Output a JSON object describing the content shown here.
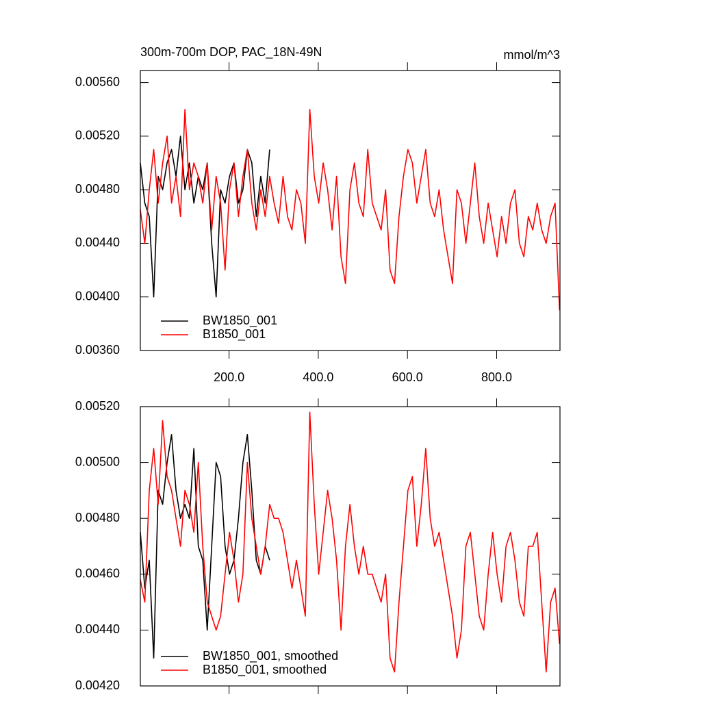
{
  "chart_data": [
    {
      "type": "line",
      "title": "300m-700m DOP, PAC_18N-49N",
      "units": "mmol/m^3",
      "xlim": [
        1,
        942
      ],
      "ylim": [
        0.0036,
        0.00569
      ],
      "xticks": [
        {
          "value": 200,
          "label": "200.0"
        },
        {
          "value": 400,
          "label": "400.0"
        },
        {
          "value": 600,
          "label": "600.0"
        },
        {
          "value": 800,
          "label": "800.0"
        }
      ],
      "yticks": [
        {
          "value": 0.0036,
          "label": "0.00360"
        },
        {
          "value": 0.004,
          "label": "0.00400"
        },
        {
          "value": 0.0044,
          "label": "0.00440"
        },
        {
          "value": 0.0048,
          "label": "0.00480"
        },
        {
          "value": 0.0052,
          "label": "0.00520"
        },
        {
          "value": 0.0056,
          "label": "0.00560"
        }
      ],
      "legend": "lower left",
      "series": [
        {
          "name": "BW1850_001",
          "color": "#000000",
          "x": [
            1,
            11,
            21,
            31,
            41,
            51,
            61,
            71,
            81,
            91,
            101,
            111,
            121,
            131,
            141,
            151,
            161,
            171,
            181,
            191,
            201,
            211,
            221,
            231,
            241,
            251,
            261,
            271,
            281,
            291
          ],
          "values": [
            0.005,
            0.0047,
            0.0046,
            0.004,
            0.0049,
            0.0048,
            0.005,
            0.0051,
            0.0049,
            0.0052,
            0.0048,
            0.005,
            0.0047,
            0.0049,
            0.0048,
            0.005,
            0.0044,
            0.004,
            0.0048,
            0.0047,
            0.0049,
            0.005,
            0.0047,
            0.0048,
            0.0051,
            0.005,
            0.0046,
            0.0049,
            0.0047,
            0.0051
          ]
        },
        {
          "name": "B1850_001",
          "color": "#ff0000",
          "x": [
            1,
            11,
            21,
            31,
            41,
            51,
            61,
            71,
            81,
            91,
            101,
            111,
            121,
            131,
            141,
            151,
            161,
            171,
            181,
            191,
            201,
            211,
            221,
            231,
            241,
            251,
            261,
            271,
            281,
            291,
            301,
            311,
            321,
            331,
            341,
            351,
            361,
            371,
            381,
            391,
            401,
            411,
            421,
            431,
            441,
            451,
            461,
            471,
            481,
            491,
            501,
            511,
            521,
            531,
            541,
            551,
            561,
            571,
            581,
            591,
            601,
            611,
            621,
            631,
            641,
            651,
            661,
            671,
            681,
            691,
            701,
            711,
            721,
            731,
            741,
            751,
            761,
            771,
            781,
            791,
            801,
            811,
            821,
            831,
            841,
            851,
            861,
            871,
            881,
            891,
            901,
            911,
            921,
            931,
            941
          ],
          "values": [
            0.00465,
            0.0044,
            0.0048,
            0.0051,
            0.0047,
            0.005,
            0.0052,
            0.0047,
            0.0049,
            0.0046,
            0.0054,
            0.0048,
            0.005,
            0.0049,
            0.0047,
            0.005,
            0.0045,
            0.0049,
            0.0047,
            0.0042,
            0.0048,
            0.005,
            0.0046,
            0.0049,
            0.0051,
            0.0047,
            0.0045,
            0.0048,
            0.0046,
            0.0049,
            0.0047,
            0.00455,
            0.0049,
            0.0046,
            0.0045,
            0.0048,
            0.0047,
            0.0044,
            0.0054,
            0.0049,
            0.0047,
            0.005,
            0.0048,
            0.0045,
            0.0049,
            0.0043,
            0.0041,
            0.0048,
            0.005,
            0.0047,
            0.0046,
            0.0051,
            0.0047,
            0.0046,
            0.0045,
            0.0048,
            0.0042,
            0.0041,
            0.0046,
            0.0049,
            0.0051,
            0.005,
            0.0047,
            0.0049,
            0.0051,
            0.0047,
            0.0046,
            0.0048,
            0.0045,
            0.0043,
            0.0041,
            0.0048,
            0.0047,
            0.0044,
            0.0047,
            0.005,
            0.0046,
            0.0044,
            0.0047,
            0.0045,
            0.0043,
            0.0046,
            0.0044,
            0.0047,
            0.0048,
            0.0044,
            0.0043,
            0.0046,
            0.0045,
            0.0047,
            0.0045,
            0.0044,
            0.0046,
            0.0047,
            0.0039
          ]
        }
      ]
    },
    {
      "type": "line",
      "xlim": [
        1,
        942
      ],
      "ylim": [
        0.0042,
        0.0052
      ],
      "xticks": [
        200,
        400,
        600,
        800
      ],
      "yticks": [
        {
          "value": 0.0042,
          "label": "0.00420"
        },
        {
          "value": 0.0044,
          "label": "0.00440"
        },
        {
          "value": 0.0046,
          "label": "0.00460"
        },
        {
          "value": 0.0048,
          "label": "0.00480"
        },
        {
          "value": 0.005,
          "label": "0.00500"
        },
        {
          "value": 0.0052,
          "label": "0.00520"
        }
      ],
      "legend": "lower left",
      "series": [
        {
          "name": "BW1850_001, smoothed",
          "color": "#000000",
          "x": [
            1,
            11,
            21,
            31,
            41,
            51,
            61,
            71,
            81,
            91,
            101,
            111,
            121,
            131,
            141,
            151,
            161,
            171,
            181,
            191,
            201,
            211,
            221,
            231,
            241,
            251,
            261,
            271,
            281,
            291
          ],
          "values": [
            0.00475,
            0.00455,
            0.00465,
            0.0043,
            0.0049,
            0.00485,
            0.005,
            0.0051,
            0.0049,
            0.0048,
            0.00485,
            0.0048,
            0.00505,
            0.0047,
            0.00465,
            0.0044,
            0.0047,
            0.005,
            0.00495,
            0.0047,
            0.0046,
            0.00465,
            0.0048,
            0.005,
            0.0051,
            0.0049,
            0.00465,
            0.0046,
            0.0047,
            0.00465
          ]
        },
        {
          "name": "B1850_001, smoothed",
          "color": "#ff0000",
          "x": [
            1,
            11,
            21,
            31,
            41,
            51,
            61,
            71,
            81,
            91,
            101,
            111,
            121,
            131,
            141,
            151,
            161,
            171,
            181,
            191,
            201,
            211,
            221,
            231,
            241,
            251,
            261,
            271,
            281,
            291,
            301,
            311,
            321,
            331,
            341,
            351,
            361,
            371,
            381,
            391,
            401,
            411,
            421,
            431,
            441,
            451,
            461,
            471,
            481,
            491,
            501,
            511,
            521,
            531,
            541,
            551,
            561,
            571,
            581,
            591,
            601,
            611,
            621,
            631,
            641,
            651,
            661,
            671,
            681,
            691,
            701,
            711,
            721,
            731,
            741,
            751,
            761,
            771,
            781,
            791,
            801,
            811,
            821,
            831,
            841,
            851,
            861,
            871,
            881,
            891,
            901,
            911,
            921,
            931,
            941
          ],
          "values": [
            0.00458,
            0.0045,
            0.0049,
            0.00505,
            0.00485,
            0.00515,
            0.00495,
            0.0049,
            0.0048,
            0.0047,
            0.0049,
            0.00485,
            0.00475,
            0.005,
            0.0047,
            0.0045,
            0.00445,
            0.0044,
            0.00445,
            0.0046,
            0.00475,
            0.00465,
            0.0045,
            0.0046,
            0.005,
            0.0048,
            0.0047,
            0.0046,
            0.0047,
            0.00485,
            0.0048,
            0.0048,
            0.00475,
            0.00465,
            0.00455,
            0.00465,
            0.00455,
            0.00445,
            0.00518,
            0.00485,
            0.0046,
            0.00475,
            0.0049,
            0.0048,
            0.00465,
            0.0044,
            0.0047,
            0.00485,
            0.0047,
            0.0046,
            0.0047,
            0.0046,
            0.0046,
            0.00455,
            0.0045,
            0.0046,
            0.0043,
            0.00425,
            0.0045,
            0.0047,
            0.0049,
            0.00495,
            0.0047,
            0.00485,
            0.00505,
            0.0048,
            0.0047,
            0.00475,
            0.00465,
            0.00455,
            0.00445,
            0.0043,
            0.0044,
            0.0047,
            0.00475,
            0.0046,
            0.00445,
            0.0044,
            0.0046,
            0.00475,
            0.0046,
            0.0045,
            0.0047,
            0.00475,
            0.00465,
            0.0045,
            0.00445,
            0.0047,
            0.0047,
            0.00475,
            0.0045,
            0.00425,
            0.0045,
            0.00455,
            0.00435
          ]
        }
      ]
    }
  ]
}
